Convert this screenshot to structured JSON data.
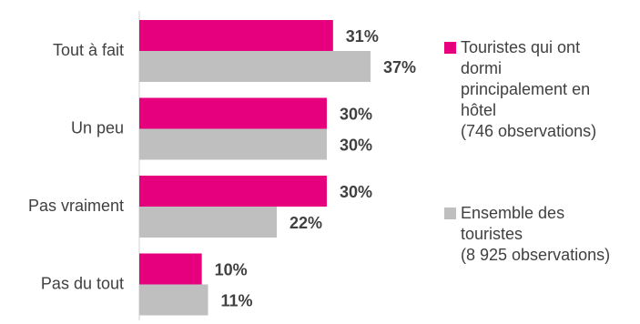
{
  "chart_data": {
    "type": "bar",
    "orientation": "horizontal",
    "categories": [
      "Tout à fait",
      "Un peu",
      "Pas vraiment",
      "Pas du tout"
    ],
    "series": [
      {
        "name": "Touristes qui ont dormi principalement en hôtel (746 observations)",
        "legend_lines": [
          "Touristes qui ont",
          "dormi",
          "principalement en",
          "hôtel",
          "(746 observations)"
        ],
        "color": "#e6007e",
        "values": [
          31,
          30,
          30,
          10
        ],
        "labels": [
          "31%",
          "30%",
          "30%",
          "10%"
        ]
      },
      {
        "name": "Ensemble des touristes (8 925 observations)",
        "legend_lines": [
          "Ensemble des",
          "touristes",
          "(8 925 observations)"
        ],
        "color": "#bfbfbf",
        "values": [
          37,
          30,
          22,
          11
        ],
        "labels": [
          "37%",
          "30%",
          "22%",
          "11%"
        ]
      }
    ],
    "value_unit": "%",
    "xlim": [
      0,
      37
    ],
    "legend_position": "right",
    "grid": false
  }
}
